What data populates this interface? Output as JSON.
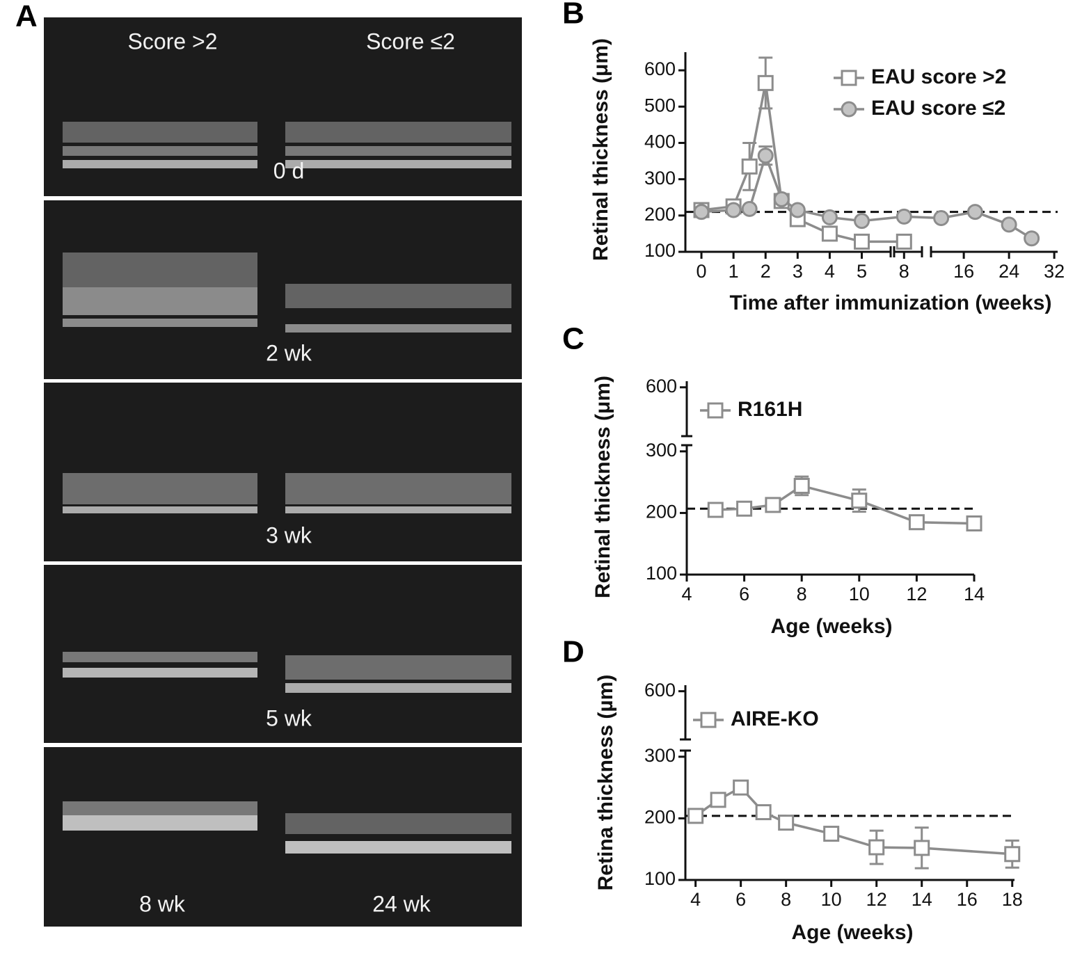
{
  "images": {
    "panel_label": "A",
    "column_labels": [
      "Score >2",
      "Score ≤2"
    ],
    "image_labels": [
      "0 d",
      "2 wk",
      "3 wk",
      "5 wk",
      "8 wk",
      "24 wk"
    ]
  },
  "chart_data": [
    {
      "type": "line",
      "panel_label": "B",
      "xlabel": "Time after immunization (weeks)",
      "ylabel": "Retinal thickness (μm)",
      "xlim": [
        [
          -0.5,
          5.9
        ],
        [
          7.5,
          8.9
        ],
        [
          10.2,
          32.6
        ]
      ],
      "xticks": [
        0,
        1,
        2,
        3,
        4,
        5,
        8,
        16,
        24,
        32
      ],
      "ylim": [
        100,
        650
      ],
      "yticks": [
        100,
        200,
        300,
        400,
        500,
        600
      ],
      "reference_line": 210,
      "legend": "upper-right",
      "series": [
        {
          "name": "EAU score >2",
          "marker": "square",
          "color": "#8c8c8c",
          "x": [
            0,
            1,
            1.5,
            2,
            2.5,
            3,
            4,
            5,
            8
          ],
          "values": [
            215,
            225,
            335,
            565,
            240,
            190,
            150,
            128,
            128
          ],
          "errors": [
            0,
            0,
            65,
            70,
            0,
            0,
            0,
            0,
            0
          ]
        },
        {
          "name": "EAU score ≤2",
          "marker": "circle",
          "color": "#8c8c8c",
          "x": [
            0,
            1,
            1.5,
            2,
            2.5,
            3,
            4,
            5,
            8,
            12,
            18,
            24,
            28
          ],
          "values": [
            210,
            215,
            218,
            365,
            245,
            215,
            195,
            185,
            197,
            193,
            210,
            175,
            137
          ],
          "errors": [
            0,
            0,
            0,
            25,
            0,
            0,
            0,
            0,
            0,
            0,
            0,
            0,
            0
          ]
        }
      ]
    },
    {
      "type": "line",
      "panel_label": "C",
      "xlabel": "Age (weeks)",
      "ylabel": "Retinal thickness (μm)",
      "xlim": [
        4,
        14
      ],
      "xticks": [
        4,
        6,
        8,
        10,
        12,
        14
      ],
      "ylim": [
        [
          100,
          310
        ],
        [
          560,
          605
        ]
      ],
      "yticks": [
        100,
        200,
        300,
        600
      ],
      "reference_line": 207,
      "legend": "upper-left",
      "series": [
        {
          "name": "R161H",
          "marker": "square",
          "color": "#8c8c8c",
          "x": [
            5,
            6,
            7,
            8,
            10,
            12,
            14
          ],
          "values": [
            205,
            207,
            213,
            244,
            220,
            185,
            183
          ],
          "errors": [
            0,
            0,
            0,
            15,
            18,
            10,
            8
          ]
        }
      ]
    },
    {
      "type": "line",
      "panel_label": "D",
      "xlabel": "Age (weeks)",
      "ylabel": "Retina thickness (µm)",
      "xlim": [
        3.55,
        18.1
      ],
      "xticks": [
        4,
        6,
        8,
        10,
        12,
        14,
        16,
        18
      ],
      "ylim": [
        [
          100,
          310
        ],
        [
          560,
          605
        ]
      ],
      "yticks": [
        100,
        200,
        300,
        600
      ],
      "reference_line": 204,
      "legend": "upper-left",
      "series": [
        {
          "name": "AIRE-KO",
          "marker": "square",
          "color": "#8c8c8c",
          "x": [
            4,
            5,
            6,
            7,
            8,
            10,
            12,
            14,
            18
          ],
          "values": [
            204,
            230,
            250,
            210,
            193,
            175,
            153,
            152,
            142
          ],
          "errors": [
            0,
            0,
            0,
            0,
            10,
            0,
            27,
            33,
            22
          ]
        }
      ]
    }
  ]
}
